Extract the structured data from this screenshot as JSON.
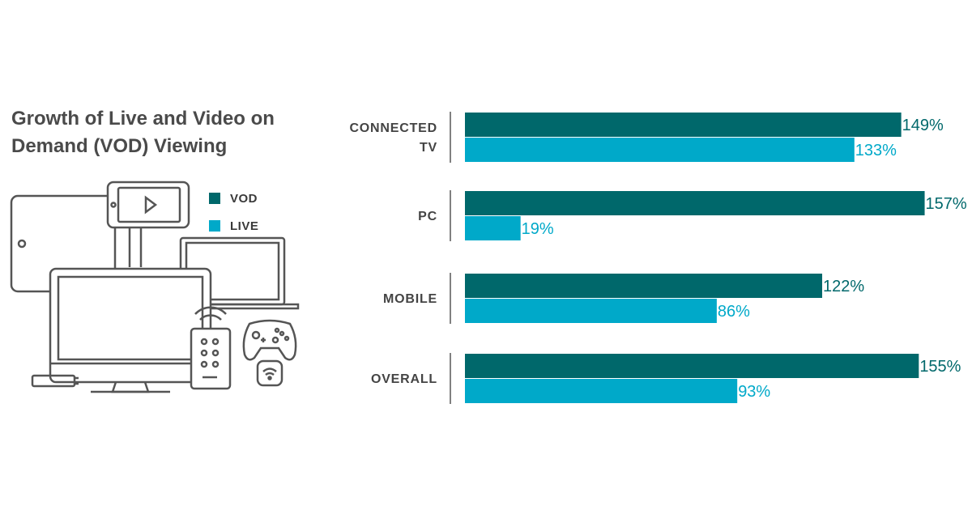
{
  "title_lines": [
    "Growth of Live and Video on",
    "Demand (VOD) Viewing"
  ],
  "legend": [
    {
      "label": "VOD",
      "color": "#00686b"
    },
    {
      "label": "LIVE",
      "color": "#00a9c9"
    }
  ],
  "chart_data": {
    "type": "bar",
    "orientation": "horizontal",
    "title": "Growth of Live and Video on Demand (VOD) Viewing",
    "categories": [
      "CONNECTED TV",
      "PC",
      "MOBILE",
      "OVERALL"
    ],
    "category_label_lines": [
      [
        "CONNECTED",
        "TV"
      ],
      [
        "PC"
      ],
      [
        "MOBILE"
      ],
      [
        "OVERALL"
      ]
    ],
    "series": [
      {
        "name": "VOD",
        "color": "#00686b",
        "values": [
          149,
          157,
          122,
          155
        ],
        "labels": [
          "149%",
          "157%",
          "122%",
          "155%"
        ]
      },
      {
        "name": "LIVE",
        "color": "#00a9c9",
        "values": [
          133,
          19,
          86,
          93
        ],
        "labels": [
          "133%",
          "19%",
          "86%",
          "93%"
        ]
      }
    ],
    "unit": "%",
    "grid": false,
    "legend_position": "left"
  }
}
